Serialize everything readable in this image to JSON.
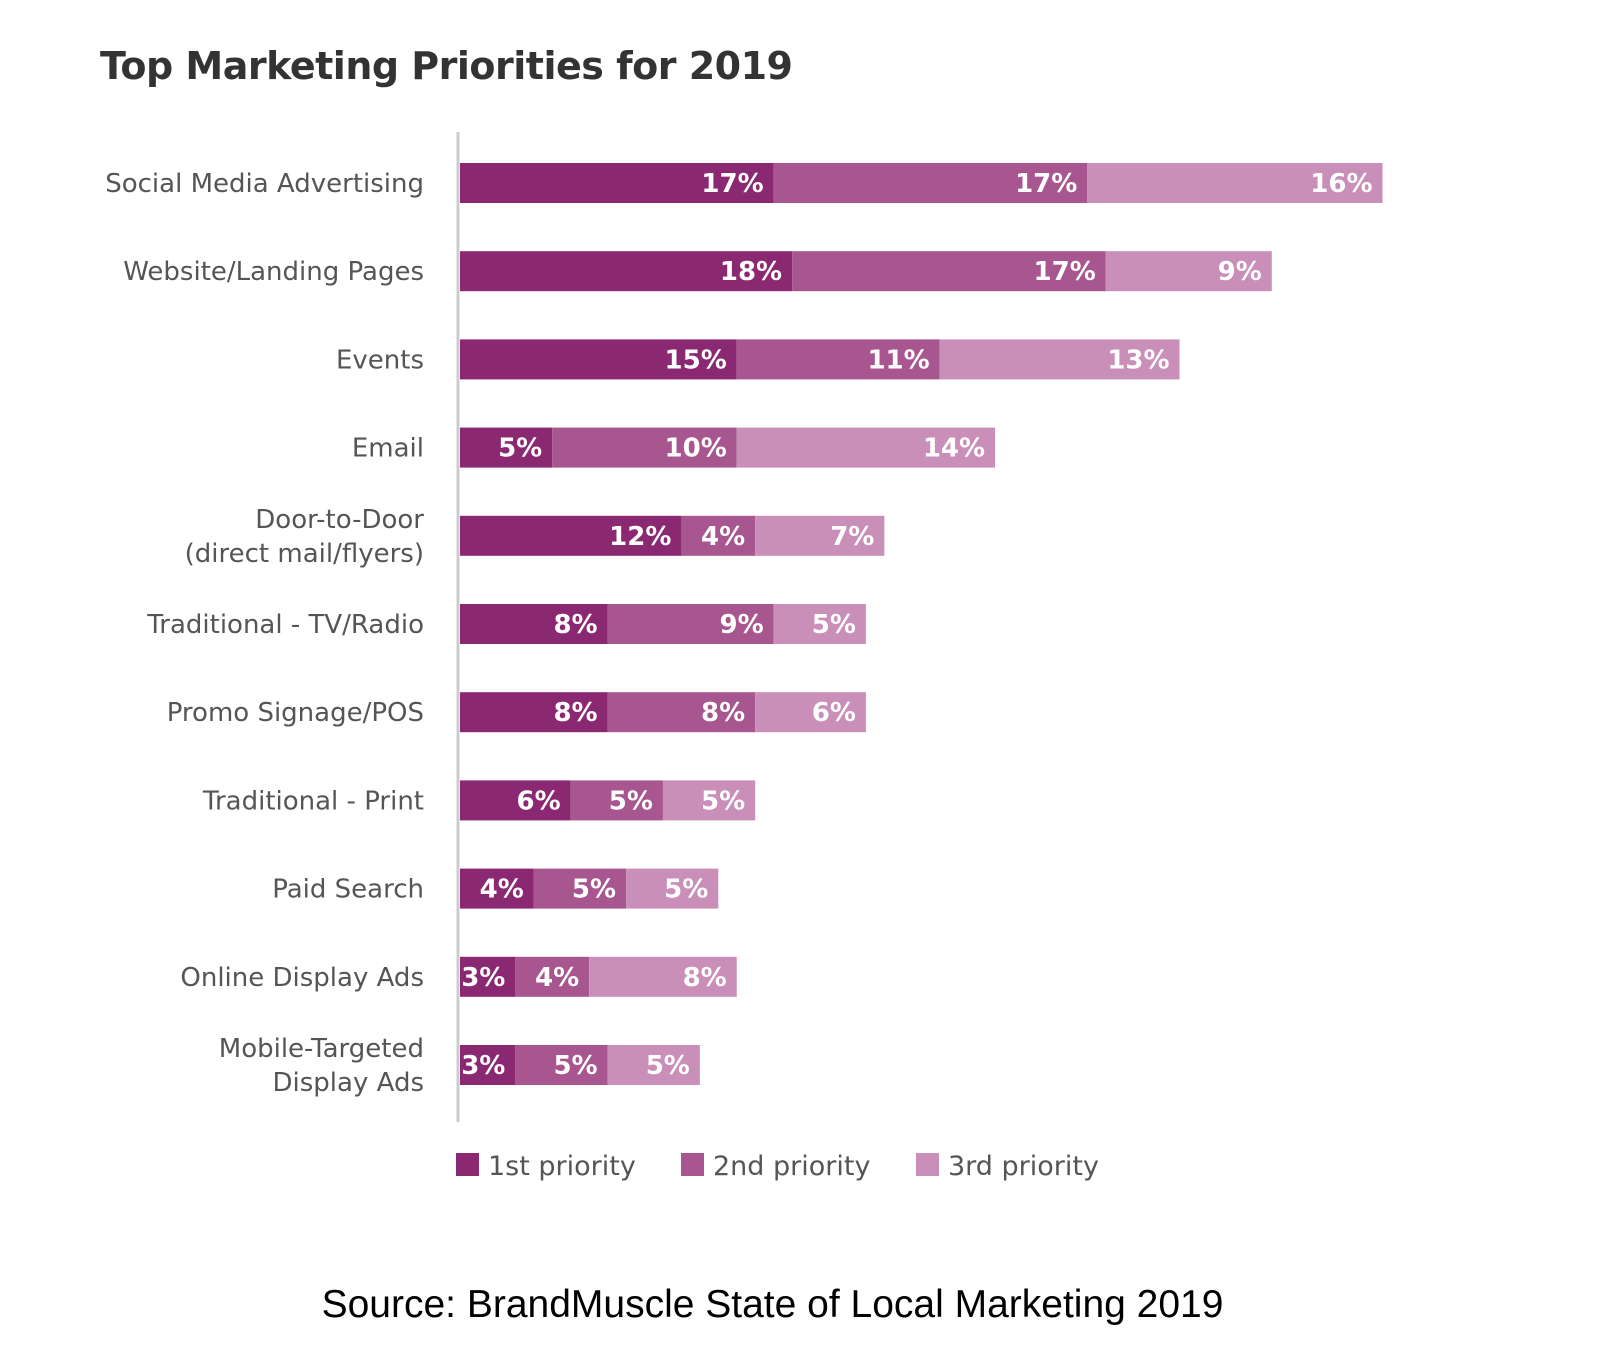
{
  "chart_data": {
    "type": "bar",
    "orientation": "horizontal",
    "stacked": true,
    "title": "Top Marketing Priorities for 2019",
    "categories": [
      "Social Media Advertising",
      "Website/Landing Pages",
      "Events",
      "Email",
      "Door-to-Door (direct mail/flyers)",
      "Traditional - TV/Radio",
      "Promo Signage/POS",
      "Traditional - Print",
      "Paid Search",
      "Online Display Ads",
      "Mobile-Targeted Display Ads"
    ],
    "category_lines": [
      [
        "Social Media Advertising"
      ],
      [
        "Website/Landing Pages"
      ],
      [
        "Events"
      ],
      [
        "Email"
      ],
      [
        "Door-to-Door",
        "(direct mail/flyers)"
      ],
      [
        "Traditional - TV/Radio"
      ],
      [
        "Promo Signage/POS"
      ],
      [
        "Traditional - Print"
      ],
      [
        "Paid Search"
      ],
      [
        "Online Display Ads"
      ],
      [
        "Mobile-Targeted",
        "Display Ads"
      ]
    ],
    "series": [
      {
        "name": "1st priority",
        "color": "#8b2872",
        "values": [
          17,
          18,
          15,
          5,
          12,
          8,
          8,
          6,
          4,
          3,
          3
        ]
      },
      {
        "name": "2nd priority",
        "color": "#a7568f",
        "values": [
          17,
          17,
          11,
          10,
          4,
          9,
          8,
          5,
          5,
          4,
          5
        ]
      },
      {
        "name": "3rd priority",
        "color": "#c98fb8",
        "values": [
          16,
          9,
          13,
          14,
          7,
          5,
          6,
          5,
          5,
          8,
          5
        ]
      }
    ],
    "value_suffix": "%",
    "legend_position": "bottom",
    "grid": false
  },
  "source": "Source: BrandMuscle State of Local Marketing 2019"
}
